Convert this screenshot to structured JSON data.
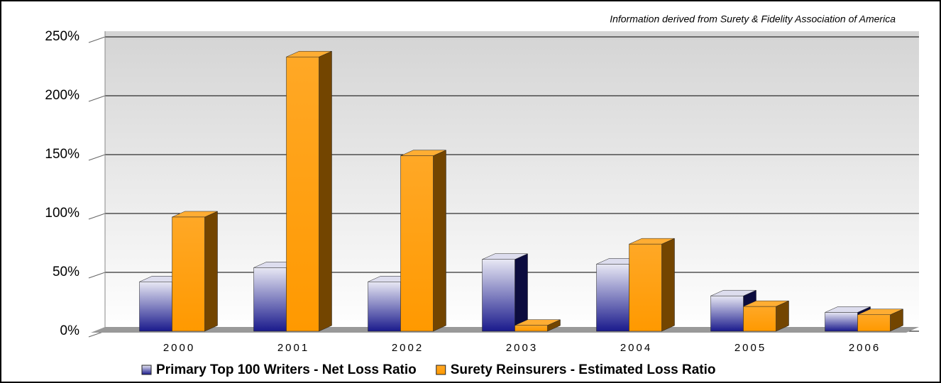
{
  "chart_data": {
    "type": "bar3d",
    "annotation": "Information derived from Surety & Fidelity Association of America",
    "categories": [
      "2000",
      "2001",
      "2002",
      "2003",
      "2004",
      "2005",
      "2006"
    ],
    "series": [
      {
        "name": "Primary Top 100 Writers - Net Loss Ratio",
        "color": "#1a1a8c",
        "values": [
          42,
          54,
          42,
          61,
          57,
          30,
          16
        ]
      },
      {
        "name": "Surety Reinsurers - Estimated Loss Ratio",
        "color": "#ff9900",
        "values": [
          97,
          233,
          149,
          5,
          74,
          21,
          14
        ]
      }
    ],
    "ylim": [
      0,
      250
    ],
    "yticks": [
      {
        "value": 0,
        "label": "0%"
      },
      {
        "value": 50,
        "label": "50%"
      },
      {
        "value": 100,
        "label": "100%"
      },
      {
        "value": 150,
        "label": "150%"
      },
      {
        "value": 200,
        "label": "200%"
      },
      {
        "value": 250,
        "label": "250%"
      }
    ],
    "grid": true
  }
}
